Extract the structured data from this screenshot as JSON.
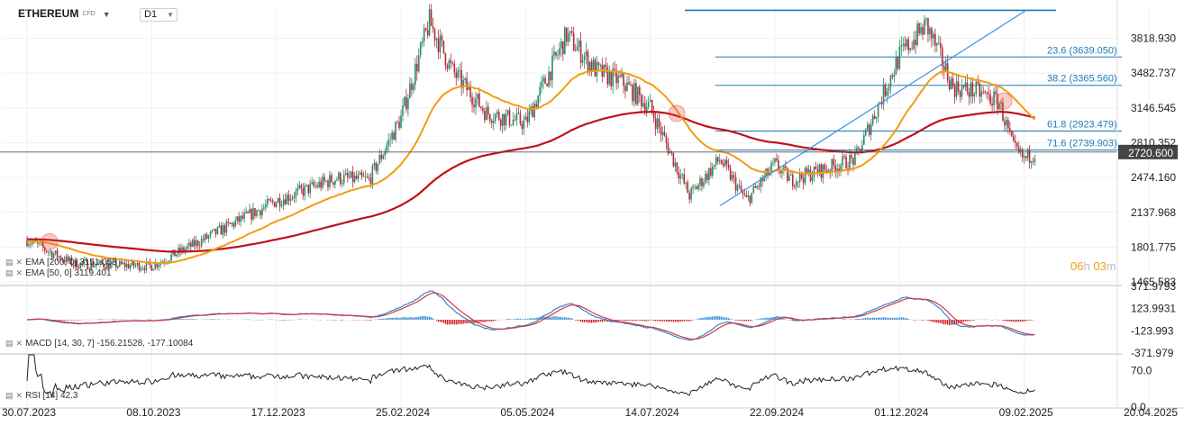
{
  "header": {
    "symbol": "ETHEREUM",
    "symbol_tag": "CFD",
    "timeframe": "D1"
  },
  "colors": {
    "ema200": "#c0121a",
    "ema50": "#f39c12",
    "fib": "#1f78b4",
    "trend": "#3b8fe0",
    "up": "#2a8a6c",
    "down": "#b52b3a",
    "macd": "#2f86d0",
    "signal": "#d9363e",
    "hist_pos": "#2f86d0",
    "hist_neg": "#d01d22",
    "rsi": "#222222",
    "price_label_bg": "#444444"
  },
  "indicators": {
    "ema200": "EMA [200, 0]  3151.053",
    "ema50": "EMA [50, 0]  3119.401",
    "macd": "MACD [14, 30, 7]  -156.21528,  -177.10084",
    "rsi": "RSI [14]  42.3"
  },
  "countdown": {
    "hours": "06",
    "h": "h",
    "minutes": "03",
    "m": "m"
  },
  "price_axis": {
    "ticks": [
      "3818.930",
      "3482.737",
      "3146.545",
      "2810.352",
      "2474.160",
      "2137.968",
      "1801.775",
      "1465.583"
    ],
    "current_label": "2720.600"
  },
  "macd_axis": {
    "ticks": [
      "371.9793",
      "123.9931",
      "-123.993",
      "-371.979"
    ]
  },
  "rsi_axis": {
    "ticks": [
      "70.0",
      "0.0"
    ]
  },
  "date_axis": {
    "ticks": [
      "30.07.2023",
      "08.10.2023",
      "17.12.2023",
      "25.02.2024",
      "05.05.2024",
      "14.07.2024",
      "22.09.2024",
      "01.12.2024",
      "09.02.2025",
      "20.04.2025"
    ]
  },
  "chart_data": {
    "type": "candlestick",
    "title": "",
    "timeframe": "D1",
    "x_ticks": [
      "30.07.2023",
      "08.10.2023",
      "17.12.2023",
      "25.02.2024",
      "05.05.2024",
      "14.07.2024",
      "22.09.2024",
      "01.12.2024",
      "09.02.2025",
      "20.04.2025"
    ],
    "y_ticks": [
      3818.93,
      3482.737,
      3146.545,
      2810.352,
      2474.16,
      2137.968,
      1801.775,
      1465.583
    ],
    "ylim": [
      1440,
      4120
    ],
    "current_price": 2720.6,
    "close_path": [
      [
        "30.07.2023",
        1870
      ],
      [
        "25.08.2023",
        1640
      ],
      [
        "08.10.2023",
        1620
      ],
      [
        "01.11.2023",
        1830
      ],
      [
        "17.12.2023",
        2250
      ],
      [
        "20.01.2024",
        2470
      ],
      [
        "07.02.2024",
        2450
      ],
      [
        "25.02.2024",
        3050
      ],
      [
        "12.03.2024",
        3980
      ],
      [
        "25.03.2024",
        3500
      ],
      [
        "13.04.2024",
        3100
      ],
      [
        "05.05.2024",
        3000
      ],
      [
        "28.05.2024",
        3850
      ],
      [
        "14.06.2024",
        3500
      ],
      [
        "28.06.2024",
        3400
      ],
      [
        "14.07.2024",
        3150
      ],
      [
        "05.08.2024",
        2300
      ],
      [
        "22.08.2024",
        2650
      ],
      [
        "06.09.2024",
        2250
      ],
      [
        "22.09.2024",
        2600
      ],
      [
        "01.10.2024",
        2450
      ],
      [
        "06.11.2024",
        2650
      ],
      [
        "01.12.2024",
        3650
      ],
      [
        "16.12.2024",
        3950
      ],
      [
        "31.12.2024",
        3350
      ],
      [
        "14.01.2025",
        3300
      ],
      [
        "26.01.2025",
        3200
      ],
      [
        "03.02.2025",
        2750
      ],
      [
        "09.02.2025",
        2650
      ],
      [
        "15.02.2025",
        2720
      ]
    ],
    "ema50": {
      "label": "EMA [50, 0]",
      "last": 3119.401
    },
    "ema200": {
      "label": "EMA [200, 0]",
      "last": 3151.053
    },
    "fibonacci": [
      {
        "level": "23.6",
        "value": 3639.05
      },
      {
        "level": "38.2",
        "value": 3365.56
      },
      {
        "level": "61.8",
        "value": 2923.479
      },
      {
        "level": "71.6",
        "value": 2739.903
      }
    ],
    "fib_labels": [
      "23.6 (3639.050)",
      "38.2 (3365.560)",
      "61.8 (2923.479)",
      "71.6 (2739.903)"
    ],
    "fib_high": 4090,
    "trendline": {
      "from": [
        "22.08.2024",
        2200
      ],
      "to": [
        "10.02.2025",
        4090
      ]
    },
    "macd": {
      "params": [
        14,
        30,
        7
      ],
      "values": [
        -156.21528,
        -177.10084
      ],
      "ylim": [
        -372,
        372
      ]
    },
    "rsi": {
      "period": 14,
      "value": 42.3,
      "ylim": [
        0,
        100
      ],
      "ticks": [
        70,
        0
      ]
    }
  }
}
